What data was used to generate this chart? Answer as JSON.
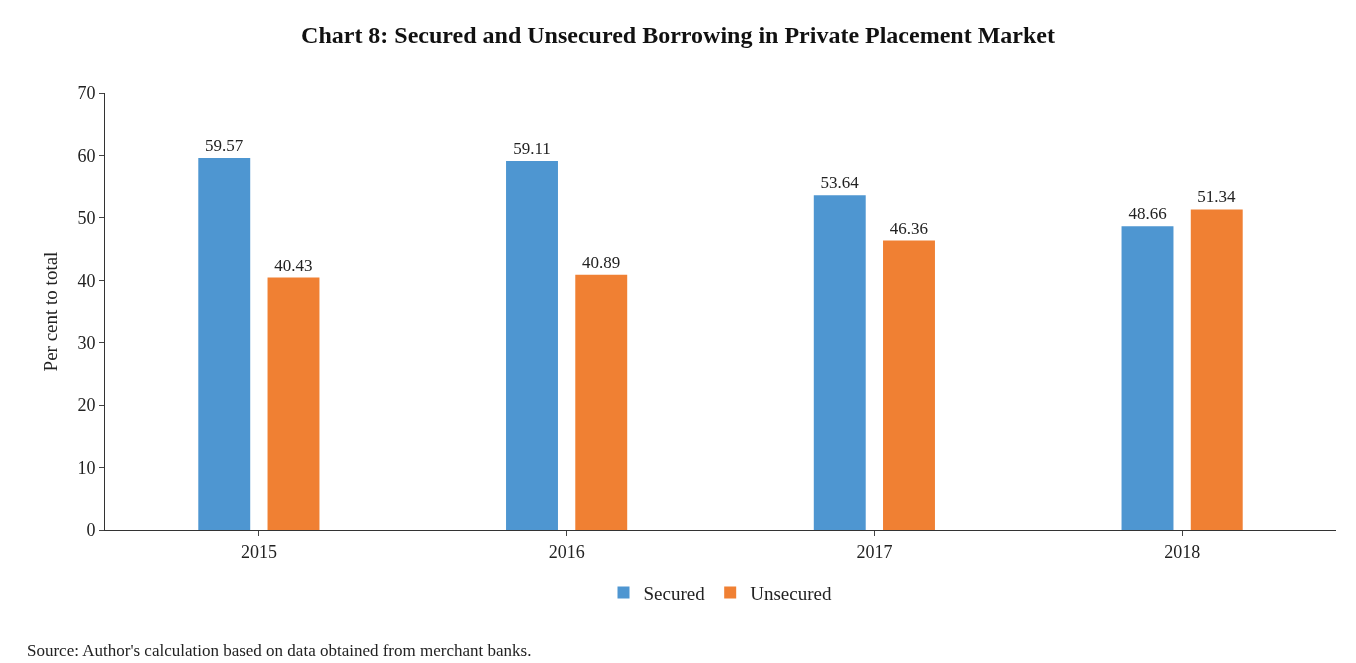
{
  "chart_data": {
    "type": "bar",
    "title": "Chart 8: Secured and Unsecured Borrowing in Private Placement Market",
    "ylabel": "Per cent to total",
    "categories": [
      "2015",
      "2016",
      "2017",
      "2018"
    ],
    "series": [
      {
        "name": "Secured",
        "color": "#4e96d1",
        "values": [
          59.57,
          59.11,
          53.64,
          48.66
        ]
      },
      {
        "name": "Unsecured",
        "color": "#f08033",
        "values": [
          40.43,
          40.89,
          46.36,
          51.34
        ]
      }
    ],
    "ylim": [
      0,
      70
    ],
    "yticks": [
      0,
      10,
      20,
      30,
      40,
      50,
      60,
      70
    ],
    "grid": false,
    "legend": "bottom",
    "data_labels": true,
    "annotations": [
      "Source: Author's calculation based on data obtained from merchant banks."
    ]
  }
}
